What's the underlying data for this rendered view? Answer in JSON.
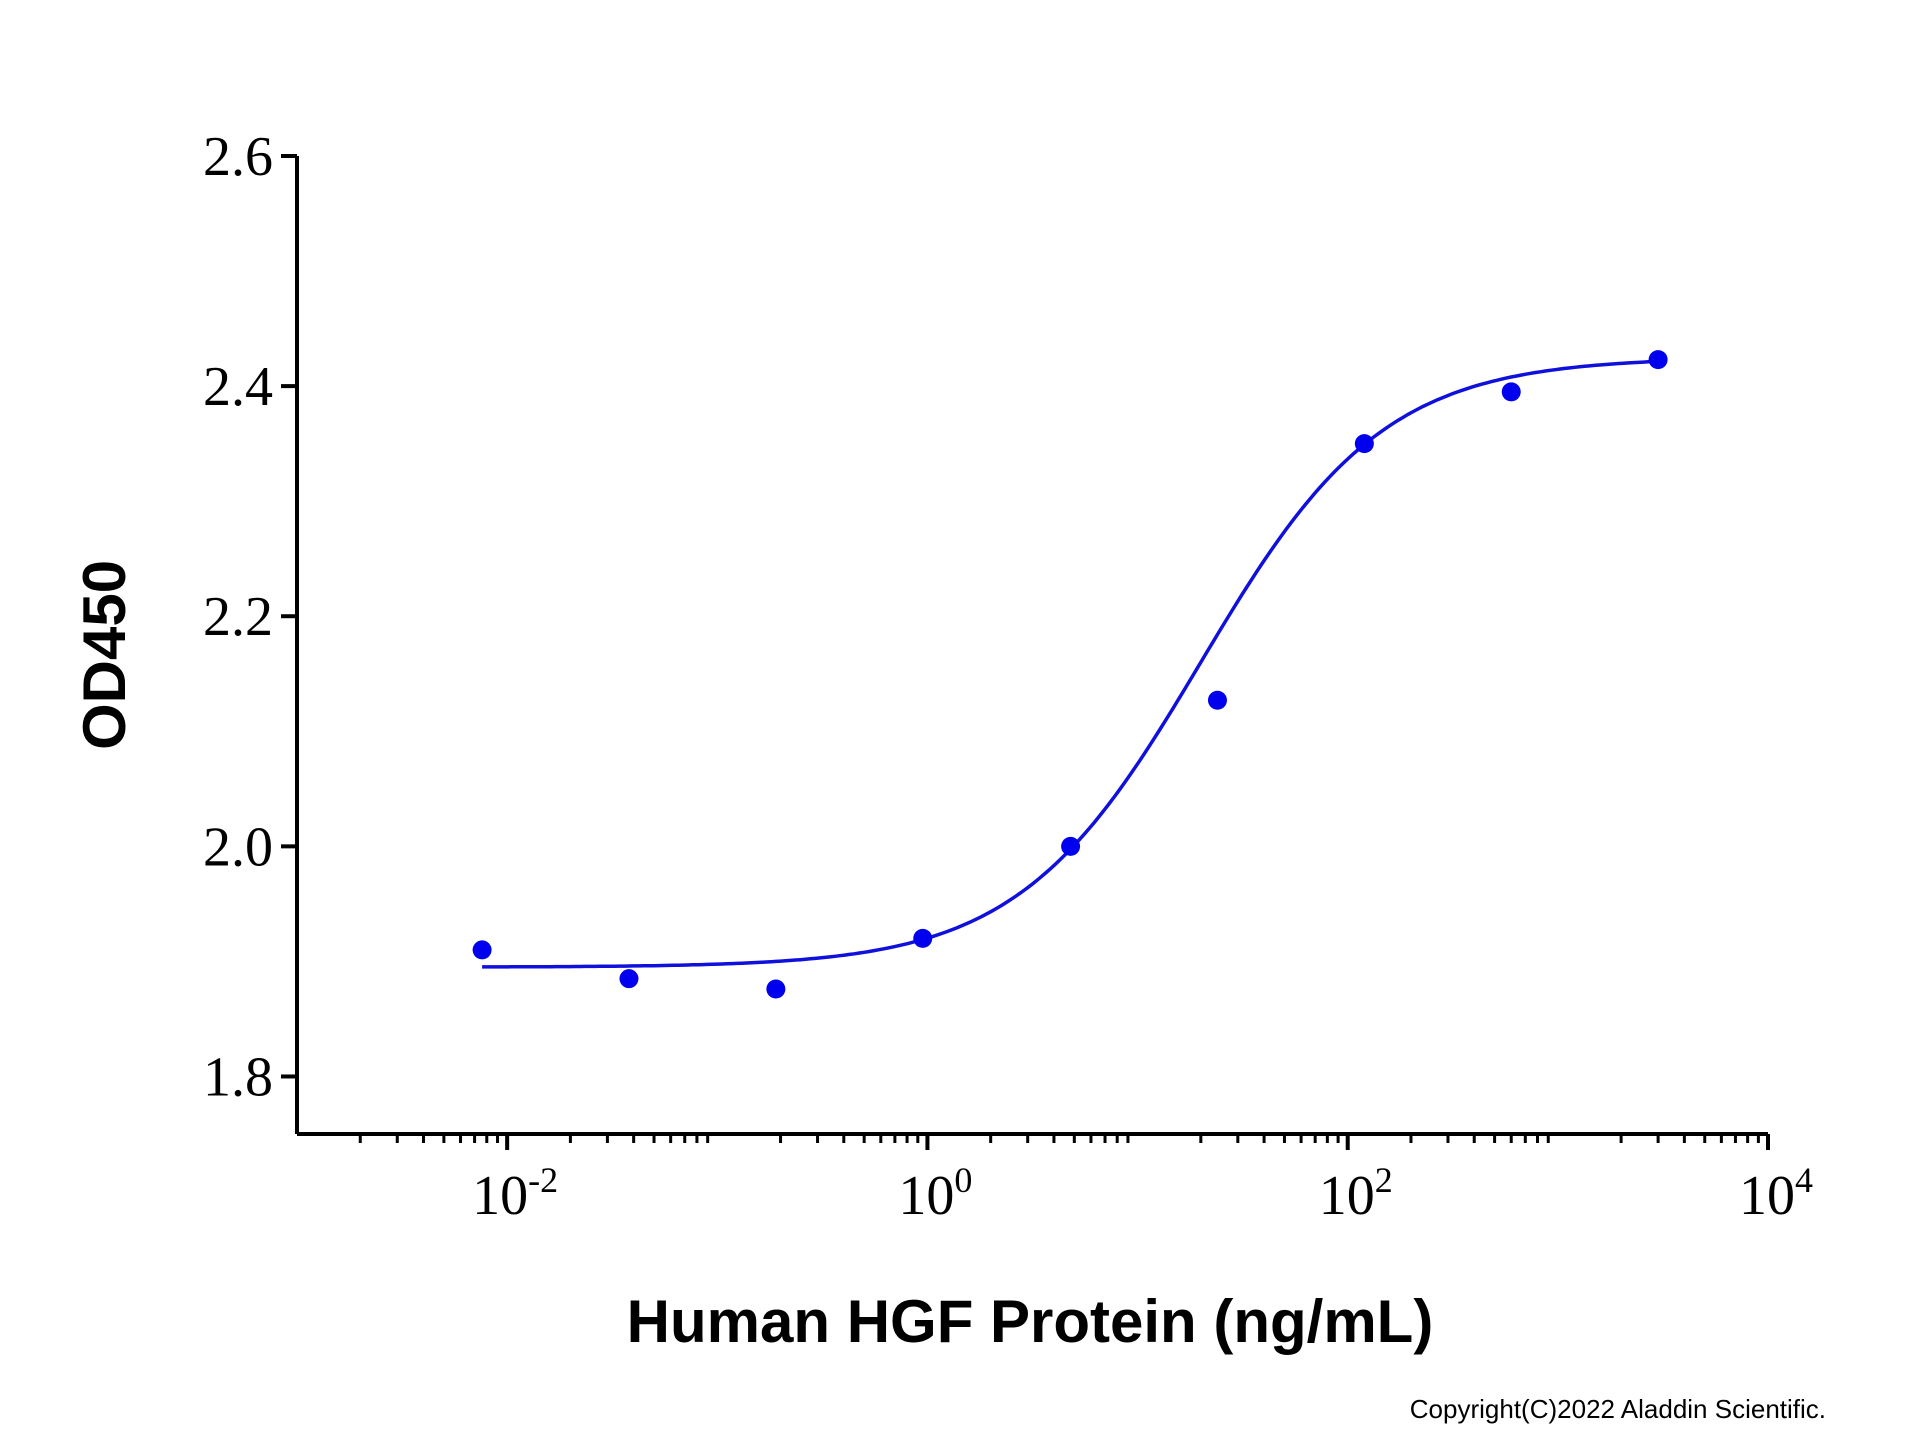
{
  "chart_data": {
    "type": "scatter",
    "xlabel": "Human HGF Protein (ng/mL)",
    "ylabel": "OD450",
    "x_scale": "log",
    "xlim": [
      0.001,
      10000
    ],
    "ylim": [
      1.75,
      2.6
    ],
    "y_ticks": [
      "1.8",
      "2.0",
      "2.2",
      "2.4",
      "2.6"
    ],
    "x_ticks": [
      {
        "value": 0.01,
        "base": "10",
        "exp": "-2"
      },
      {
        "value": 1,
        "base": "10",
        "exp": "0"
      },
      {
        "value": 100,
        "base": "10",
        "exp": "2"
      },
      {
        "value": 10000,
        "base": "10",
        "exp": "4"
      }
    ],
    "grid": false,
    "legend": "none",
    "series": [
      {
        "type": "scatter",
        "color": "#0000ee",
        "x": [
          0.0076,
          0.038,
          0.19,
          0.95,
          4.8,
          24,
          120,
          600,
          3000
        ],
        "y": [
          1.91,
          1.885,
          1.876,
          1.92,
          2.0,
          2.127,
          2.35,
          2.395,
          2.423
        ]
      },
      {
        "type": "line",
        "color": "#1010dd",
        "fit": "4PL",
        "bottom": 1.895,
        "top": 2.425,
        "ec50": 20,
        "hill": 1.0,
        "x_range": [
          0.0076,
          3000
        ]
      }
    ]
  },
  "footer": {
    "copyright": "Copyright(C)2022 Aladdin Scientific."
  }
}
